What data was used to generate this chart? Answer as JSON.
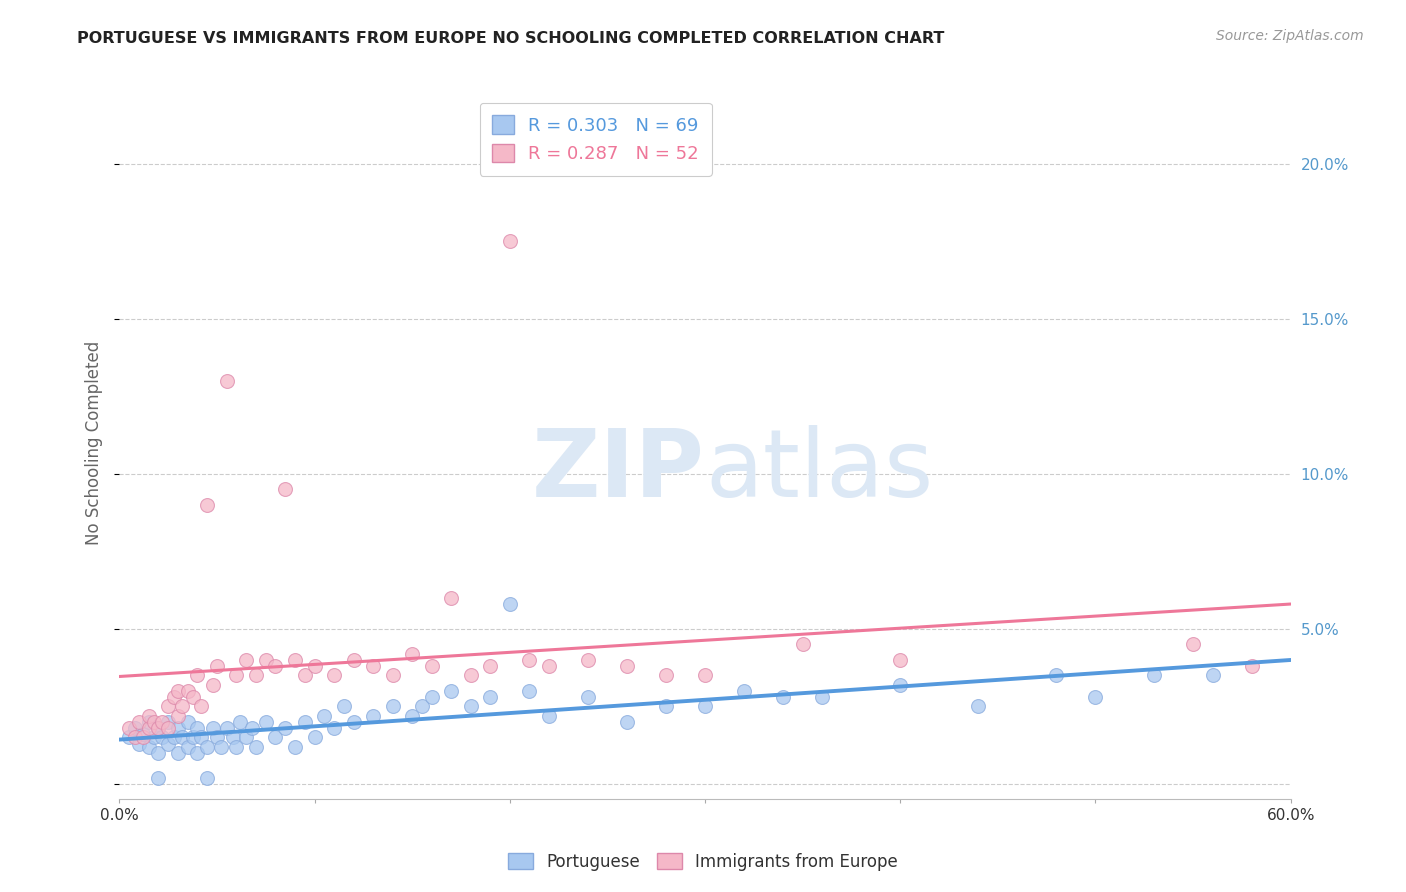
{
  "title": "PORTUGUESE VS IMMIGRANTS FROM EUROPE NO SCHOOLING COMPLETED CORRELATION CHART",
  "source": "Source: ZipAtlas.com",
  "ylabel": "No Schooling Completed",
  "xlim": [
    0.0,
    0.6
  ],
  "ylim": [
    -0.005,
    0.225
  ],
  "xticks": [
    0.0,
    0.1,
    0.2,
    0.3,
    0.4,
    0.5,
    0.6
  ],
  "xticklabels": [
    "0.0%",
    "",
    "",
    "",
    "",
    "",
    "60.0%"
  ],
  "yticks_right": [
    0.0,
    0.05,
    0.1,
    0.15,
    0.2
  ],
  "ytick_right_labels": [
    "",
    "5.0%",
    "10.0%",
    "15.0%",
    "20.0%"
  ],
  "legend_R_blue": "0.303",
  "legend_N_blue": "69",
  "legend_R_pink": "0.287",
  "legend_N_pink": "52",
  "color_blue": "#a8c8f0",
  "color_pink": "#f5b8c8",
  "line_blue": "#5599dd",
  "line_pink": "#ee7799",
  "portuguese_x": [
    0.005,
    0.008,
    0.01,
    0.012,
    0.015,
    0.015,
    0.018,
    0.02,
    0.02,
    0.022,
    0.025,
    0.025,
    0.028,
    0.03,
    0.03,
    0.032,
    0.035,
    0.035,
    0.038,
    0.04,
    0.04,
    0.042,
    0.045,
    0.048,
    0.05,
    0.052,
    0.055,
    0.058,
    0.06,
    0.062,
    0.065,
    0.068,
    0.07,
    0.075,
    0.08,
    0.085,
    0.09,
    0.095,
    0.1,
    0.105,
    0.11,
    0.115,
    0.12,
    0.13,
    0.14,
    0.15,
    0.155,
    0.16,
    0.17,
    0.18,
    0.19,
    0.2,
    0.21,
    0.22,
    0.24,
    0.26,
    0.28,
    0.3,
    0.32,
    0.34,
    0.36,
    0.4,
    0.44,
    0.48,
    0.5,
    0.53,
    0.56,
    0.02,
    0.045
  ],
  "portuguese_y": [
    0.015,
    0.018,
    0.013,
    0.016,
    0.012,
    0.02,
    0.015,
    0.01,
    0.018,
    0.015,
    0.013,
    0.02,
    0.015,
    0.01,
    0.018,
    0.015,
    0.012,
    0.02,
    0.015,
    0.01,
    0.018,
    0.015,
    0.012,
    0.018,
    0.015,
    0.012,
    0.018,
    0.015,
    0.012,
    0.02,
    0.015,
    0.018,
    0.012,
    0.02,
    0.015,
    0.018,
    0.012,
    0.02,
    0.015,
    0.022,
    0.018,
    0.025,
    0.02,
    0.022,
    0.025,
    0.022,
    0.025,
    0.028,
    0.03,
    0.025,
    0.028,
    0.058,
    0.03,
    0.022,
    0.028,
    0.02,
    0.025,
    0.025,
    0.03,
    0.028,
    0.028,
    0.032,
    0.025,
    0.035,
    0.028,
    0.035,
    0.035,
    0.002,
    0.002
  ],
  "immigrants_x": [
    0.005,
    0.008,
    0.01,
    0.012,
    0.015,
    0.015,
    0.018,
    0.02,
    0.022,
    0.025,
    0.025,
    0.028,
    0.03,
    0.03,
    0.032,
    0.035,
    0.038,
    0.04,
    0.042,
    0.045,
    0.048,
    0.05,
    0.055,
    0.06,
    0.065,
    0.07,
    0.075,
    0.08,
    0.085,
    0.09,
    0.095,
    0.1,
    0.11,
    0.12,
    0.13,
    0.14,
    0.15,
    0.16,
    0.17,
    0.18,
    0.19,
    0.2,
    0.21,
    0.22,
    0.24,
    0.26,
    0.28,
    0.3,
    0.35,
    0.4,
    0.55,
    0.58
  ],
  "immigrants_y": [
    0.018,
    0.015,
    0.02,
    0.015,
    0.018,
    0.022,
    0.02,
    0.018,
    0.02,
    0.018,
    0.025,
    0.028,
    0.022,
    0.03,
    0.025,
    0.03,
    0.028,
    0.035,
    0.025,
    0.09,
    0.032,
    0.038,
    0.13,
    0.035,
    0.04,
    0.035,
    0.04,
    0.038,
    0.095,
    0.04,
    0.035,
    0.038,
    0.035,
    0.04,
    0.038,
    0.035,
    0.042,
    0.038,
    0.06,
    0.035,
    0.038,
    0.175,
    0.04,
    0.038,
    0.04,
    0.038,
    0.035,
    0.035,
    0.045,
    0.04,
    0.045,
    0.038
  ]
}
